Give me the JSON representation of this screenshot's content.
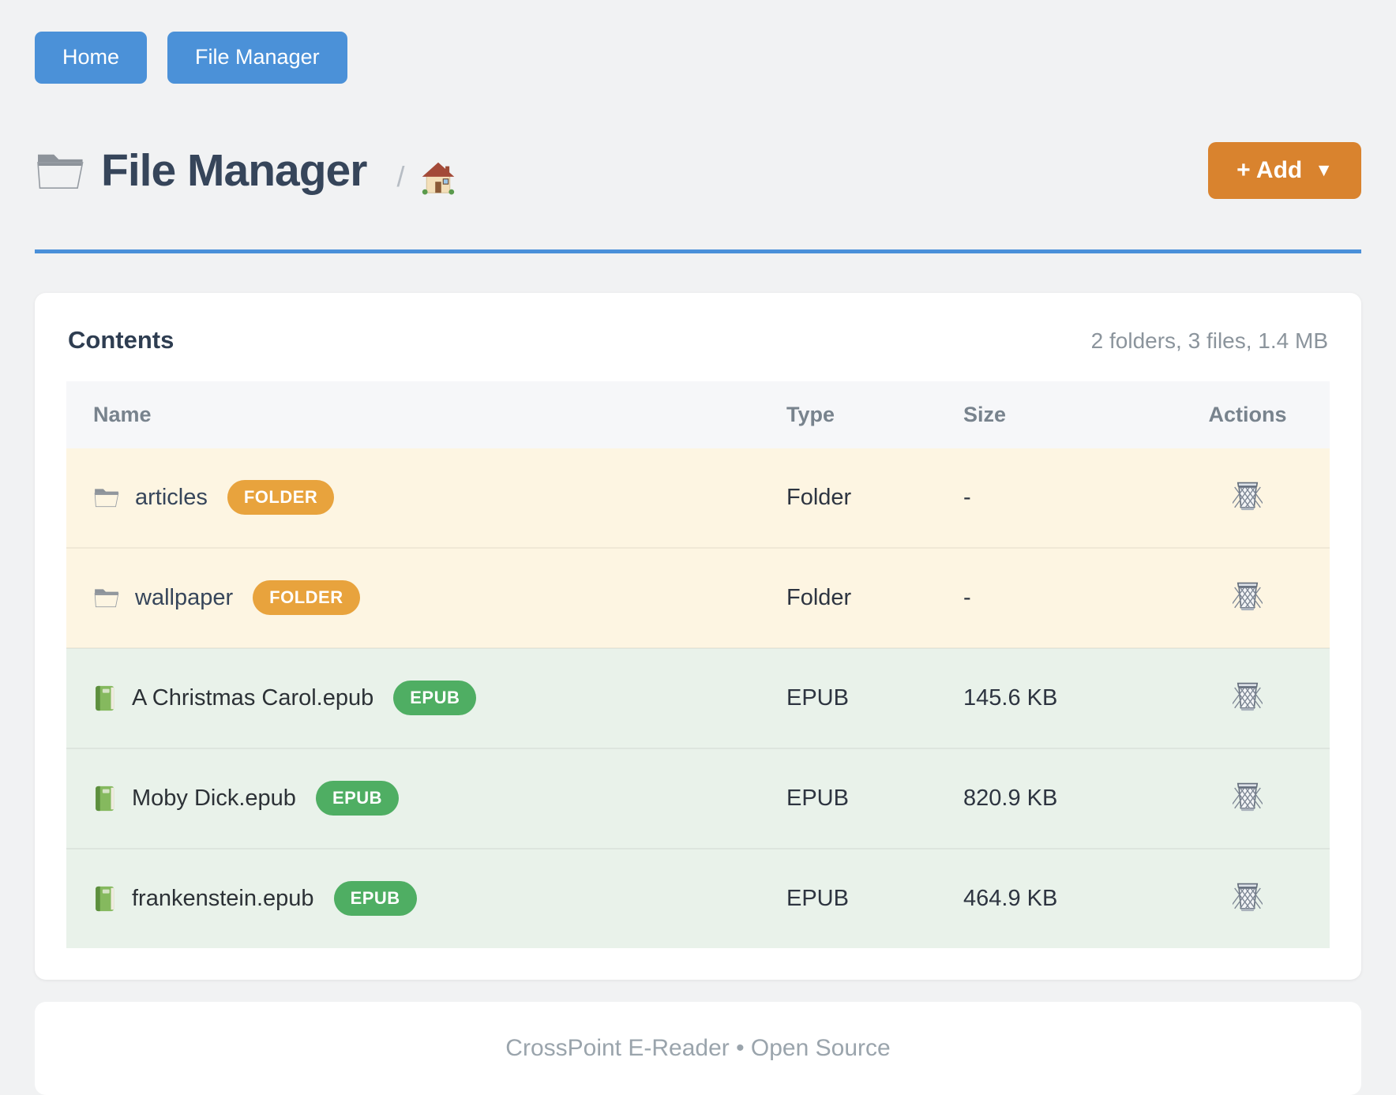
{
  "nav": {
    "buttons": [
      {
        "label": "Home"
      },
      {
        "label": "File Manager"
      }
    ]
  },
  "header": {
    "icon": "folder-icon",
    "title": "File Manager",
    "breadcrumb": {
      "separator": "/",
      "home_icon": "house-icon"
    },
    "add_button": {
      "label": "+ Add",
      "caret": "▼"
    }
  },
  "contents": {
    "title": "Contents",
    "summary": "2 folders, 3 files, 1.4 MB",
    "columns": [
      "Name",
      "Type",
      "Size",
      "Actions"
    ],
    "rows": [
      {
        "icon": "folder-icon",
        "name": "articles",
        "badge": "FOLDER",
        "kind": "folder",
        "type": "Folder",
        "size": "-",
        "action_icon": "trash-icon"
      },
      {
        "icon": "folder-icon",
        "name": "wallpaper",
        "badge": "FOLDER",
        "kind": "folder",
        "type": "Folder",
        "size": "-",
        "action_icon": "trash-icon"
      },
      {
        "icon": "book-icon",
        "name": "A Christmas Carol.epub",
        "badge": "EPUB",
        "kind": "epub",
        "type": "EPUB",
        "size": "145.6 KB",
        "action_icon": "trash-icon"
      },
      {
        "icon": "book-icon",
        "name": "Moby Dick.epub",
        "badge": "EPUB",
        "kind": "epub",
        "type": "EPUB",
        "size": "820.9 KB",
        "action_icon": "trash-icon"
      },
      {
        "icon": "book-icon",
        "name": "frankenstein.epub",
        "badge": "EPUB",
        "kind": "epub",
        "type": "EPUB",
        "size": "464.9 KB",
        "action_icon": "trash-icon"
      }
    ]
  },
  "footer": {
    "text": "CrossPoint E-Reader • Open Source"
  },
  "colors": {
    "page_bg": "#f1f2f3",
    "accent_blue": "#4b91d8",
    "divider_blue": "#4a90d9",
    "accent_orange": "#d9832e",
    "badge_folder": "#e8a33d",
    "badge_epub": "#4fae63",
    "row_folder_bg": "#fdf5e2",
    "row_epub_bg": "#e9f2ea",
    "title_text": "#36455a"
  }
}
